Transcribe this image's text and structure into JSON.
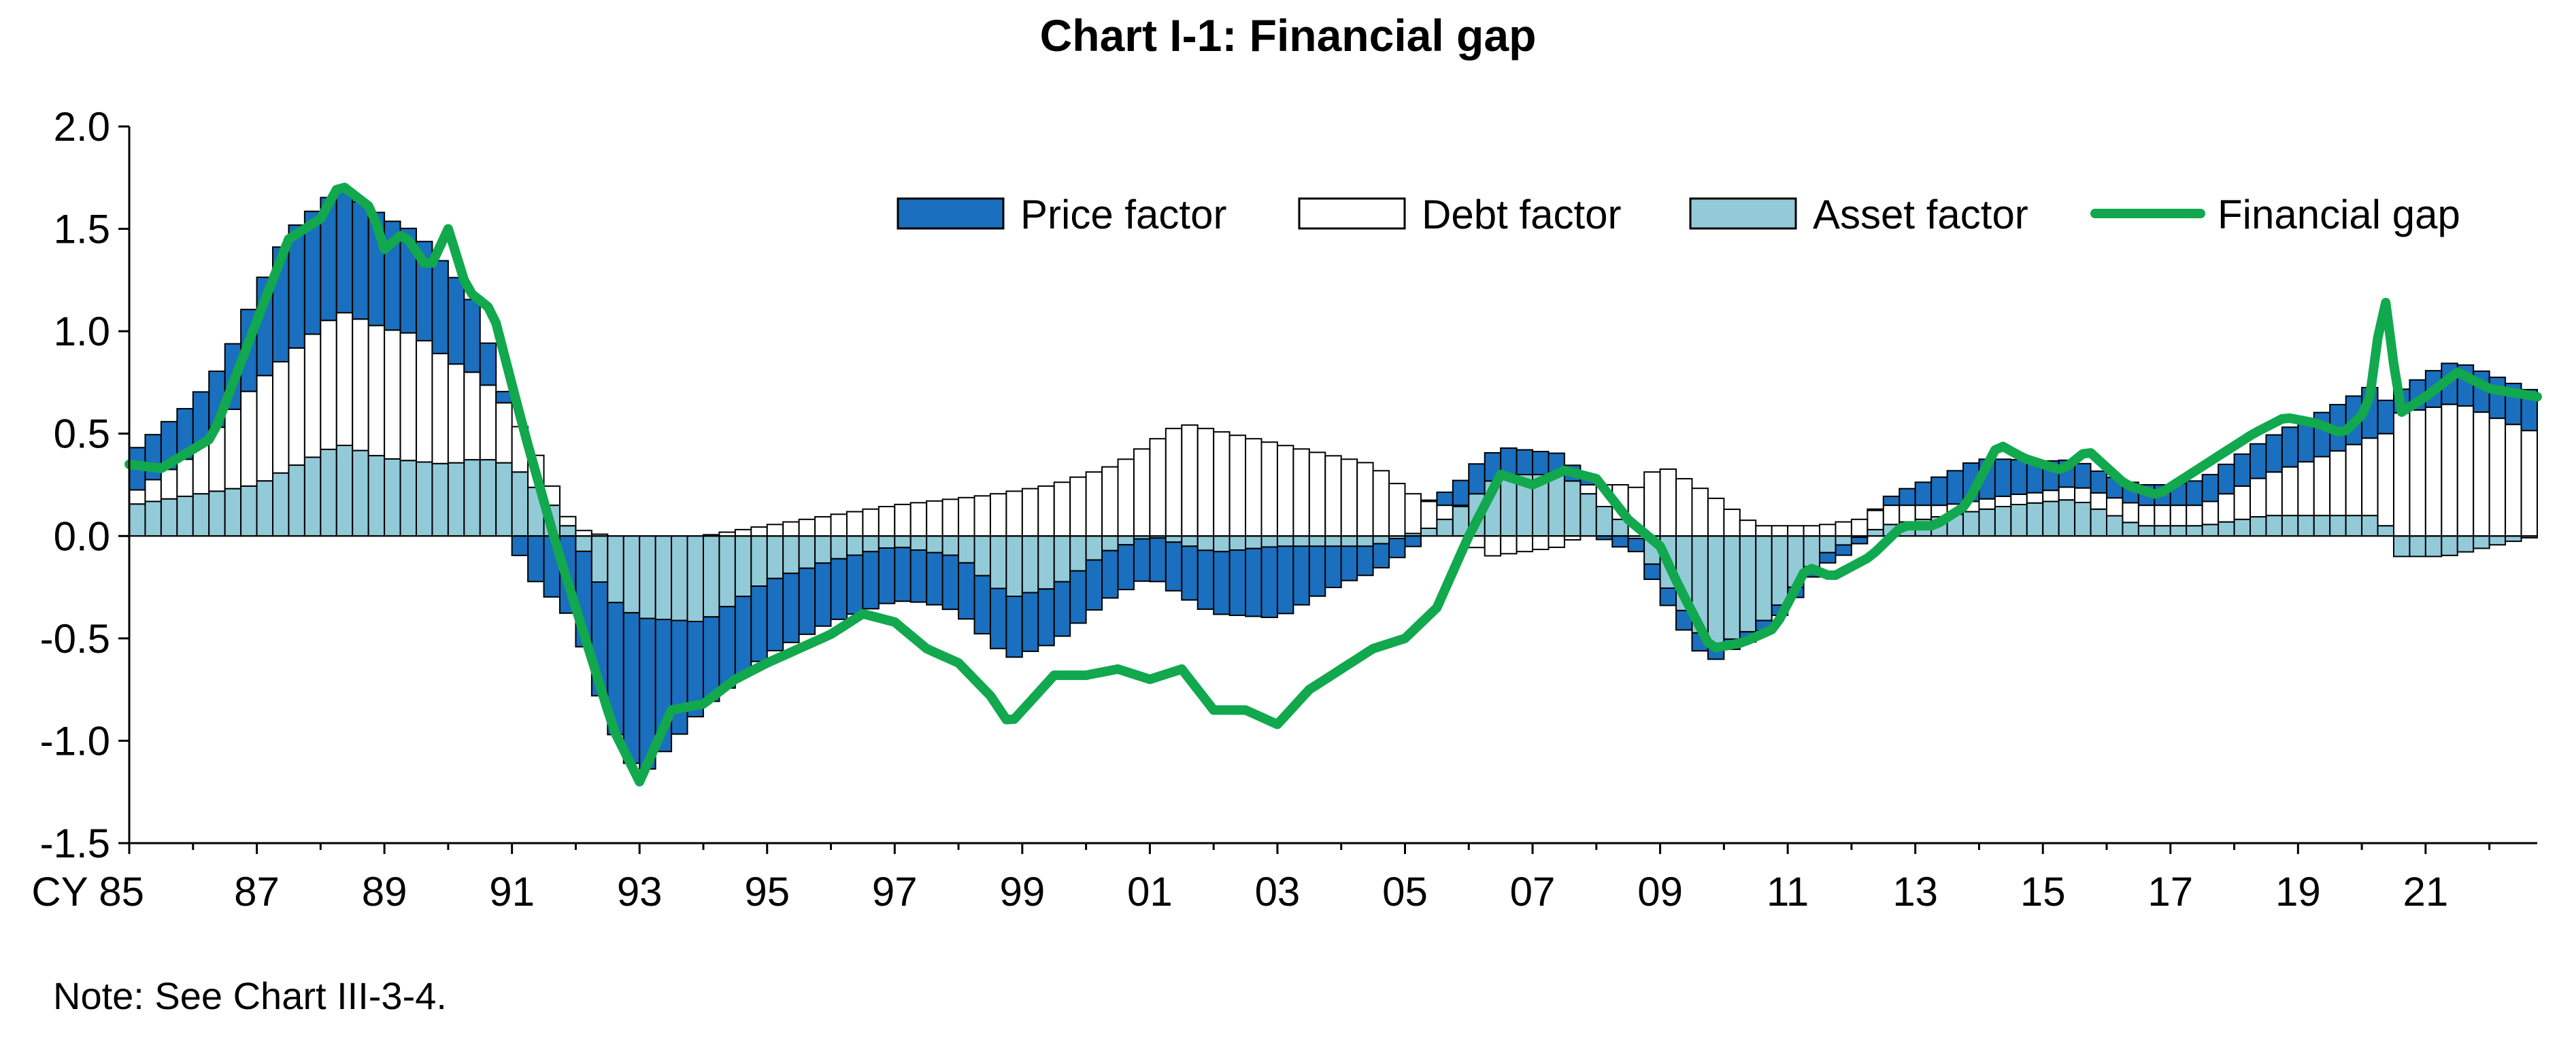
{
  "note": "Note: See Chart III-3-4.",
  "colors": {
    "price": "#1a6fbe",
    "debt": "#ffffff",
    "asset": "#93cad8",
    "gap": "#11a84e",
    "stroke": "#000000"
  },
  "chart_data": {
    "type": "bar",
    "title": "Chart I-1: Financial gap",
    "xlabel": "",
    "ylabel": "",
    "ylim": [
      -1.5,
      2.0
    ],
    "yticks": [
      "2.0",
      "1.5",
      "1.0",
      "0.5",
      "0.0",
      "-0.5",
      "-1.0",
      "-1.5"
    ],
    "x_start_year": 1985,
    "x_end_year": 2022.75,
    "xticks": [
      "CY 85",
      "87",
      "89",
      "91",
      "93",
      "95",
      "97",
      "99",
      "01",
      "03",
      "05",
      "07",
      "09",
      "11",
      "13",
      "15",
      "17",
      "19",
      "21"
    ],
    "legend_position": "top-right",
    "legend": [
      "Price factor",
      "Debt factor",
      "Asset factor",
      "Financial gap"
    ],
    "series_keypoints": {
      "price": [
        [
          1985,
          0.2
        ],
        [
          1986.5,
          0.28
        ],
        [
          1987.5,
          0.6
        ],
        [
          1988.3,
          0.6
        ],
        [
          1989.5,
          0.5
        ],
        [
          1990.3,
          0.4
        ],
        [
          1990.8,
          0.1
        ],
        [
          1991.3,
          -0.2
        ],
        [
          1991.8,
          -0.35
        ],
        [
          1992.5,
          -0.6
        ],
        [
          1993,
          -0.78
        ],
        [
          1994,
          -0.42
        ],
        [
          1996,
          -0.3
        ],
        [
          1997.5,
          -0.25
        ],
        [
          1998.8,
          -0.3
        ],
        [
          2000,
          -0.25
        ],
        [
          2001,
          -0.2
        ],
        [
          2002,
          -0.3
        ],
        [
          2003,
          -0.35
        ],
        [
          2004,
          -0.18
        ],
        [
          2005,
          -0.08
        ],
        [
          2006,
          0.15
        ],
        [
          2007.5,
          0.1
        ],
        [
          2008.3,
          -0.05
        ],
        [
          2009.5,
          -0.1
        ],
        [
          2010,
          -0.05
        ],
        [
          2011,
          -0.05
        ],
        [
          2012,
          -0.05
        ],
        [
          2013,
          0.1
        ],
        [
          2014,
          0.2
        ],
        [
          2015,
          0.15
        ],
        [
          2016,
          0.1
        ],
        [
          2017,
          0.1
        ],
        [
          2018,
          0.15
        ],
        [
          2019,
          0.2
        ],
        [
          2020.2,
          0.25
        ],
        [
          2020.5,
          0.1
        ],
        [
          2021.3,
          0.2
        ],
        [
          2022.75,
          0.2
        ]
      ],
      "debt": [
        [
          1985,
          0.05
        ],
        [
          1986,
          0.2
        ],
        [
          1987,
          0.5
        ],
        [
          1988.3,
          0.65
        ],
        [
          1989.5,
          0.62
        ],
        [
          1990.5,
          0.4
        ],
        [
          1991.2,
          0.2
        ],
        [
          1991.8,
          0.05
        ],
        [
          1992.5,
          0.0
        ],
        [
          1994,
          0.0
        ],
        [
          1995,
          0.05
        ],
        [
          1997,
          0.15
        ],
        [
          1998.5,
          0.2
        ],
        [
          1999.5,
          0.25
        ],
        [
          2000.5,
          0.35
        ],
        [
          2001.5,
          0.55
        ],
        [
          2003,
          0.45
        ],
        [
          2004.5,
          0.35
        ],
        [
          2005.5,
          0.1
        ],
        [
          2006.3,
          -0.1
        ],
        [
          2007.5,
          -0.05
        ],
        [
          2008.5,
          0.2
        ],
        [
          2009,
          0.35
        ],
        [
          2009.8,
          0.2
        ],
        [
          2010.5,
          0.05
        ],
        [
          2011.5,
          0.05
        ],
        [
          2012.5,
          0.1
        ],
        [
          2013.5,
          0.05
        ],
        [
          2015,
          0.05
        ],
        [
          2016.5,
          0.1
        ],
        [
          2017.5,
          0.1
        ],
        [
          2018.5,
          0.2
        ],
        [
          2019.5,
          0.3
        ],
        [
          2020.3,
          0.4
        ],
        [
          2020.6,
          0.6
        ],
        [
          2021.5,
          0.65
        ],
        [
          2022.75,
          0.5
        ]
      ],
      "asset": [
        [
          1985,
          0.15
        ],
        [
          1986,
          0.2
        ],
        [
          1987,
          0.25
        ],
        [
          1988.3,
          0.45
        ],
        [
          1989,
          0.38
        ],
        [
          1990,
          0.35
        ],
        [
          1990.5,
          0.38
        ],
        [
          1991,
          0.35
        ],
        [
          1991.5,
          0.2
        ],
        [
          1992,
          0.0
        ],
        [
          1992.5,
          -0.3
        ],
        [
          1993,
          -0.4
        ],
        [
          1994,
          -0.42
        ],
        [
          1995,
          -0.22
        ],
        [
          1996,
          -0.12
        ],
        [
          1997,
          -0.05
        ],
        [
          1998,
          -0.1
        ],
        [
          1998.8,
          -0.3
        ],
        [
          1999.5,
          -0.25
        ],
        [
          2000.3,
          -0.08
        ],
        [
          2001,
          0.0
        ],
        [
          2002,
          -0.08
        ],
        [
          2003,
          -0.05
        ],
        [
          2004.5,
          -0.05
        ],
        [
          2005.5,
          0.05
        ],
        [
          2006.5,
          0.3
        ],
        [
          2007.5,
          0.3
        ],
        [
          2008.5,
          0.05
        ],
        [
          2009,
          -0.2
        ],
        [
          2009.8,
          -0.55
        ],
        [
          2010.5,
          -0.45
        ],
        [
          2011,
          -0.3
        ],
        [
          2011.5,
          -0.1
        ],
        [
          2012.5,
          0.05
        ],
        [
          2013.5,
          0.1
        ],
        [
          2014.5,
          0.15
        ],
        [
          2015.5,
          0.18
        ],
        [
          2016.5,
          0.05
        ],
        [
          2017.5,
          0.05
        ],
        [
          2018.5,
          0.1
        ],
        [
          2019.5,
          0.1
        ],
        [
          2020.3,
          0.1
        ],
        [
          2020.6,
          -0.1
        ],
        [
          2021.3,
          -0.1
        ],
        [
          2022.75,
          0.0
        ]
      ],
      "gap": [
        [
          1985,
          0.35
        ],
        [
          1985.5,
          0.33
        ],
        [
          1986.3,
          0.48
        ],
        [
          1987,
          1.05
        ],
        [
          1987.5,
          1.45
        ],
        [
          1988,
          1.55
        ],
        [
          1988.3,
          1.72
        ],
        [
          1988.8,
          1.6
        ],
        [
          1989,
          1.4
        ],
        [
          1989.3,
          1.48
        ],
        [
          1989.7,
          1.3
        ],
        [
          1990,
          1.5
        ],
        [
          1990.3,
          1.2
        ],
        [
          1990.7,
          1.1
        ],
        [
          1991.2,
          0.5
        ],
        [
          1991.7,
          -0.05
        ],
        [
          1992.2,
          -0.55
        ],
        [
          1992.6,
          -0.95
        ],
        [
          1993,
          -1.2
        ],
        [
          1993.5,
          -0.85
        ],
        [
          1994,
          -0.82
        ],
        [
          1994.5,
          -0.7
        ],
        [
          1995,
          -0.62
        ],
        [
          1995.5,
          -0.55
        ],
        [
          1996,
          -0.48
        ],
        [
          1996.5,
          -0.38
        ],
        [
          1997,
          -0.42
        ],
        [
          1997.5,
          -0.55
        ],
        [
          1998,
          -0.62
        ],
        [
          1998.5,
          -0.78
        ],
        [
          1998.8,
          -0.92
        ],
        [
          1999.5,
          -0.68
        ],
        [
          2000,
          -0.68
        ],
        [
          2000.5,
          -0.65
        ],
        [
          2001,
          -0.7
        ],
        [
          2001.5,
          -0.65
        ],
        [
          2002,
          -0.85
        ],
        [
          2002.5,
          -0.85
        ],
        [
          2003,
          -0.92
        ],
        [
          2003.5,
          -0.75
        ],
        [
          2004,
          -0.65
        ],
        [
          2004.5,
          -0.55
        ],
        [
          2005,
          -0.5
        ],
        [
          2005.5,
          -0.35
        ],
        [
          2006,
          0.0
        ],
        [
          2006.5,
          0.3
        ],
        [
          2007,
          0.25
        ],
        [
          2007.5,
          0.32
        ],
        [
          2008,
          0.28
        ],
        [
          2008.5,
          0.08
        ],
        [
          2009,
          -0.05
        ],
        [
          2009.3,
          -0.25
        ],
        [
          2009.8,
          -0.55
        ],
        [
          2010.3,
          -0.52
        ],
        [
          2010.8,
          -0.45
        ],
        [
          2011.3,
          -0.15
        ],
        [
          2011.7,
          -0.2
        ],
        [
          2012.3,
          -0.1
        ],
        [
          2012.8,
          0.05
        ],
        [
          2013.3,
          0.05
        ],
        [
          2013.8,
          0.15
        ],
        [
          2014.3,
          0.45
        ],
        [
          2014.7,
          0.38
        ],
        [
          2015.3,
          0.32
        ],
        [
          2015.7,
          0.42
        ],
        [
          2016.3,
          0.25
        ],
        [
          2016.8,
          0.2
        ],
        [
          2017.3,
          0.3
        ],
        [
          2017.8,
          0.4
        ],
        [
          2018.3,
          0.5
        ],
        [
          2018.8,
          0.58
        ],
        [
          2019.3,
          0.55
        ],
        [
          2019.7,
          0.5
        ],
        [
          2020.1,
          0.62
        ],
        [
          2020.35,
          1.2
        ],
        [
          2020.6,
          0.6
        ],
        [
          2021,
          0.68
        ],
        [
          2021.5,
          0.8
        ],
        [
          2022,
          0.72
        ],
        [
          2022.75,
          0.68
        ]
      ]
    }
  }
}
